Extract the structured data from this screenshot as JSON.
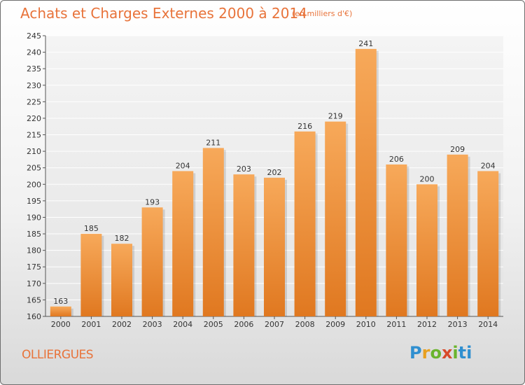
{
  "header": {
    "title": "Achats et Charges Externes 2000 à 2014",
    "subtitle": "(en milliers d'€)"
  },
  "footer": {
    "town": "OLLIERGUES",
    "logo": {
      "text": "Proxiti",
      "parts": [
        "P",
        "r",
        "o",
        "x",
        "i",
        "ti"
      ]
    }
  },
  "chart_data": {
    "type": "bar",
    "title": "Achats et Charges Externes 2000 à 2014",
    "subtitle": "(en milliers d'€)",
    "categories": [
      "2000",
      "2001",
      "2002",
      "2003",
      "2004",
      "2005",
      "2006",
      "2007",
      "2008",
      "2009",
      "2010",
      "2011",
      "2012",
      "2013",
      "2014"
    ],
    "values": [
      163,
      185,
      182,
      193,
      204,
      211,
      203,
      202,
      216,
      219,
      241,
      206,
      200,
      209,
      204
    ],
    "ylim": [
      160,
      245
    ],
    "yticks": [
      160,
      165,
      170,
      175,
      180,
      185,
      190,
      195,
      200,
      205,
      210,
      215,
      220,
      225,
      230,
      235,
      240,
      245
    ],
    "grid": true,
    "bar_color_top": "#f7a95a",
    "bar_color_bottom": "#e07820"
  }
}
